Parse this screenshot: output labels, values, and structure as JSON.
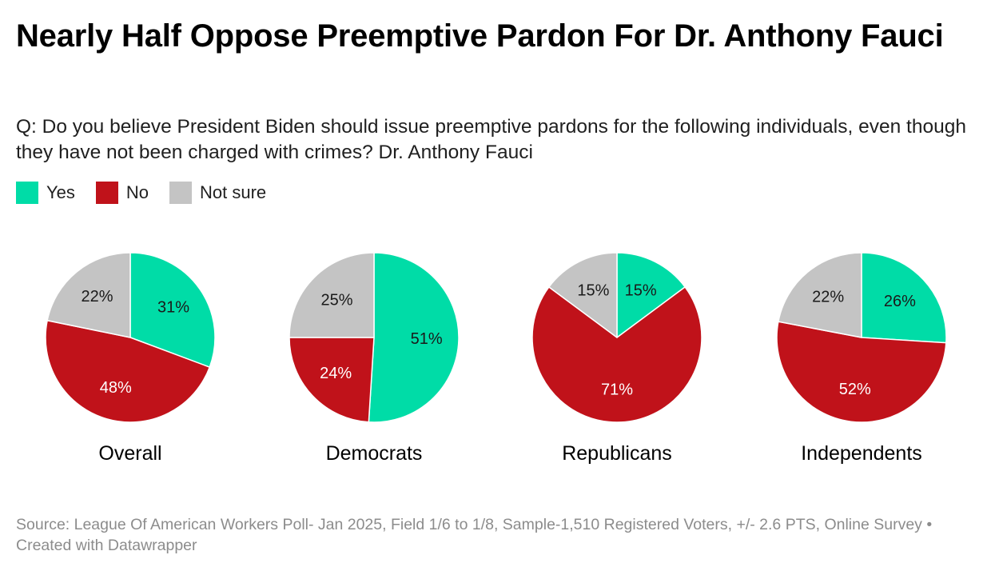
{
  "title": "Nearly Half Oppose Preemptive Pardon For Dr. Anthony Fauci",
  "subtitle": "Q: Do you believe President Biden should issue preemptive pardons for the following individuals, even though they have not been charged with crimes? Dr. Anthony Fauci",
  "legend": [
    {
      "label": "Yes",
      "color": "#00dca7"
    },
    {
      "label": "No",
      "color": "#c0121a"
    },
    {
      "label": "Not sure",
      "color": "#c4c4c4"
    }
  ],
  "source": "Source: League Of American Workers Poll- Jan 2025, Field 1/6 to 1/8, Sample-1,510 Registered Voters, +/- 2.6 PTS, Online Survey • Created with Datawrapper",
  "chart_data": {
    "type": "pie",
    "categories": [
      "Yes",
      "No",
      "Not sure"
    ],
    "colors": [
      "#00dca7",
      "#c0121a",
      "#c4c4c4"
    ],
    "panels": [
      {
        "name": "Overall",
        "values": [
          31,
          48,
          22
        ],
        "labels": [
          "31%",
          "48%",
          "22%"
        ]
      },
      {
        "name": "Democrats",
        "values": [
          51,
          24,
          25
        ],
        "labels": [
          "51%",
          "24%",
          "25%"
        ]
      },
      {
        "name": "Republicans",
        "values": [
          15,
          71,
          15
        ],
        "labels": [
          "15%",
          "71%",
          "15%"
        ]
      },
      {
        "name": "Independents",
        "values": [
          26,
          52,
          22
        ],
        "labels": [
          "26%",
          "52%",
          "22%"
        ]
      }
    ]
  }
}
